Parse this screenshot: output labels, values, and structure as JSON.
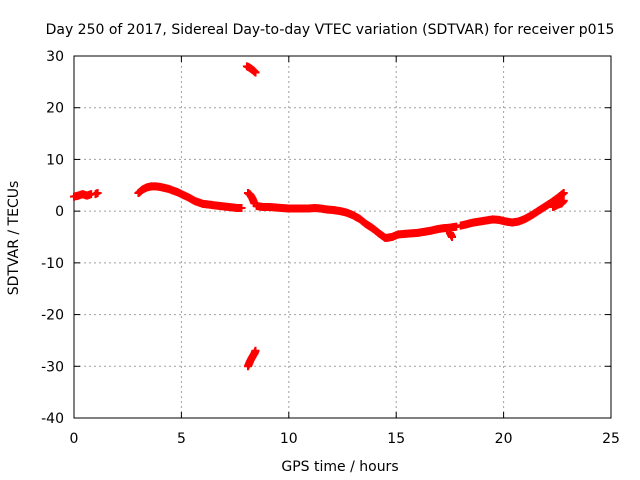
{
  "chart_data": {
    "type": "scatter",
    "title": "Day 250 of 2017, Sidereal Day-to-day VTEC variation (SDTVAR) for receiver p015",
    "xlabel": "GPS time / hours",
    "ylabel": "SDTVAR / TECUs",
    "xlim": [
      0,
      25
    ],
    "ylim": [
      -40,
      30
    ],
    "xticks": [
      0,
      5,
      10,
      15,
      20,
      25
    ],
    "yticks": [
      -40,
      -30,
      -20,
      -10,
      0,
      10,
      20,
      30
    ],
    "grid": true,
    "marker": "plus",
    "series": [
      {
        "name": "SDTVAR",
        "color": "#ff0000",
        "segments": [
          {
            "x": [
              0.0,
              0.2,
              0.4,
              0.6,
              0.8
            ],
            "y": [
              2.8,
              3.0,
              3.3,
              3.0,
              3.3
            ]
          },
          {
            "x": [
              1.0,
              1.1
            ],
            "y": [
              3.3,
              3.5
            ]
          },
          {
            "x": [
              3.0,
              3.2,
              3.4,
              3.6,
              3.8,
              4.0,
              4.2,
              4.4,
              4.6,
              4.8,
              5.0,
              5.2,
              5.4,
              5.6,
              5.8,
              6.0,
              6.2,
              6.4,
              6.6,
              6.8,
              7.0,
              7.2,
              7.4,
              7.6,
              7.8
            ],
            "y": [
              3.5,
              4.2,
              4.6,
              4.8,
              4.8,
              4.7,
              4.5,
              4.3,
              4.0,
              3.7,
              3.3,
              2.9,
              2.5,
              2.0,
              1.7,
              1.4,
              1.3,
              1.2,
              1.1,
              1.0,
              0.9,
              0.8,
              0.7,
              0.6,
              0.6
            ]
          },
          {
            "x": [
              8.05,
              8.15,
              8.25,
              8.35,
              8.45
            ],
            "y": [
              28.0,
              27.8,
              27.5,
              27.2,
              26.8
            ]
          },
          {
            "x": [
              8.1,
              8.2,
              8.3,
              8.4,
              8.45
            ],
            "y": [
              -30.0,
              -29.0,
              -28.2,
              -27.5,
              -27.0
            ]
          },
          {
            "x": [
              8.1,
              8.2,
              8.3,
              8.4
            ],
            "y": [
              3.5,
              3.2,
              2.5,
              1.5
            ]
          },
          {
            "x": [
              8.5,
              8.8,
              9.1,
              9.4,
              9.7,
              10.0,
              10.3,
              10.6,
              10.9,
              11.2,
              11.5,
              11.8,
              12.1,
              12.4,
              12.7,
              13.0,
              13.3,
              13.6,
              13.9,
              14.2,
              14.5,
              14.8,
              15.1,
              15.4,
              15.7,
              16.0,
              16.3,
              16.6,
              16.9,
              17.2,
              17.5,
              17.8
            ],
            "y": [
              1.0,
              0.8,
              0.8,
              0.7,
              0.6,
              0.5,
              0.5,
              0.5,
              0.5,
              0.6,
              0.5,
              0.3,
              0.2,
              0.0,
              -0.3,
              -0.8,
              -1.5,
              -2.5,
              -3.3,
              -4.3,
              -5.2,
              -5.0,
              -4.5,
              -4.4,
              -4.3,
              -4.2,
              -4.0,
              -3.8,
              -3.5,
              -3.3,
              -3.2,
              -3.0
            ]
          },
          {
            "x": [
              17.5,
              17.6
            ],
            "y": [
              -4.2,
              -5.0
            ]
          },
          {
            "x": [
              18.0,
              18.3,
              18.6,
              18.9,
              19.2,
              19.5,
              19.8,
              20.1,
              20.4,
              20.7,
              21.0,
              21.3,
              21.6,
              21.9,
              22.2,
              22.5,
              22.8
            ],
            "y": [
              -2.8,
              -2.5,
              -2.2,
              -2.0,
              -1.8,
              -1.6,
              -1.7,
              -2.0,
              -2.2,
              -2.0,
              -1.5,
              -0.8,
              0.0,
              0.8,
              1.6,
              2.5,
              3.5
            ]
          },
          {
            "x": [
              22.3,
              22.5,
              22.7,
              22.8
            ],
            "y": [
              0.8,
              1.2,
              1.5,
              2.0
            ]
          }
        ]
      }
    ]
  }
}
